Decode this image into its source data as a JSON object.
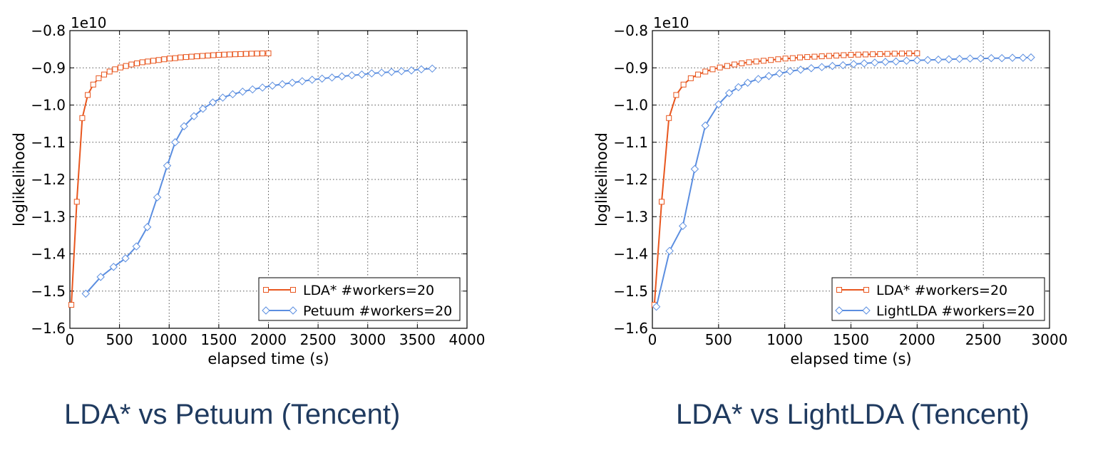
{
  "chart_data": [
    {
      "type": "line",
      "title": "",
      "xlabel": "elapsed time (s)",
      "ylabel": "loglikelihood",
      "y_multiplier": "1e10",
      "xlim": [
        0,
        4000
      ],
      "ylim": [
        -1.6,
        -0.8
      ],
      "xticks": [
        0,
        500,
        1000,
        1500,
        2000,
        2500,
        3000,
        3500,
        4000
      ],
      "xtick_labels": [
        "0",
        "500",
        "1000",
        "1500",
        "2000",
        "2500",
        "3000",
        "3500",
        "4000"
      ],
      "yticks": [
        -1.6,
        -1.5,
        -1.4,
        -1.3,
        -1.2,
        -1.1,
        -1.0,
        -0.9,
        -0.8
      ],
      "ytick_labels": [
        "−1.6",
        "−1.5",
        "−1.4",
        "−1.3",
        "−1.2",
        "−1.1",
        "−1.0",
        "−0.9",
        "−0.8"
      ],
      "grid": true,
      "legend_position": "lower-right",
      "series": [
        {
          "name": "LDA* #workers=20",
          "color": "#e8561e",
          "marker": "square",
          "x": [
            15,
            70,
            125,
            180,
            235,
            290,
            345,
            400,
            455,
            510,
            565,
            620,
            675,
            730,
            785,
            840,
            895,
            950,
            1005,
            1060,
            1115,
            1170,
            1225,
            1280,
            1335,
            1390,
            1445,
            1500,
            1555,
            1610,
            1665,
            1720,
            1775,
            1830,
            1885,
            1940,
            2000
          ],
          "y": [
            -1.537,
            -1.26,
            -1.035,
            -0.973,
            -0.945,
            -0.928,
            -0.918,
            -0.91,
            -0.904,
            -0.899,
            -0.895,
            -0.891,
            -0.888,
            -0.885,
            -0.883,
            -0.881,
            -0.879,
            -0.877,
            -0.875,
            -0.874,
            -0.872,
            -0.871,
            -0.87,
            -0.869,
            -0.868,
            -0.867,
            -0.866,
            -0.865,
            -0.8645,
            -0.864,
            -0.8635,
            -0.863,
            -0.8625,
            -0.862,
            -0.8617,
            -0.8613,
            -0.861
          ]
        },
        {
          "name": "Petuum #workers=20",
          "color": "#5b8ee0",
          "marker": "diamond",
          "x": [
            160,
            310,
            440,
            560,
            670,
            780,
            880,
            980,
            1060,
            1150,
            1250,
            1340,
            1440,
            1540,
            1640,
            1740,
            1840,
            1940,
            2040,
            2140,
            2240,
            2340,
            2440,
            2540,
            2640,
            2740,
            2840,
            2940,
            3040,
            3140,
            3240,
            3340,
            3440,
            3540,
            3650
          ],
          "y": [
            -1.507,
            -1.462,
            -1.435,
            -1.412,
            -1.38,
            -1.328,
            -1.248,
            -1.163,
            -1.1,
            -1.057,
            -1.03,
            -1.01,
            -0.993,
            -0.98,
            -0.971,
            -0.964,
            -0.958,
            -0.953,
            -0.948,
            -0.944,
            -0.94,
            -0.936,
            -0.932,
            -0.929,
            -0.926,
            -0.923,
            -0.92,
            -0.918,
            -0.915,
            -0.913,
            -0.911,
            -0.909,
            -0.907,
            -0.904,
            -0.902
          ]
        }
      ]
    },
    {
      "type": "line",
      "title": "",
      "xlabel": "elapsed time (s)",
      "ylabel": "loglikelihood",
      "y_multiplier": "1e10",
      "xlim": [
        0,
        3000
      ],
      "ylim": [
        -1.6,
        -0.8
      ],
      "xticks": [
        0,
        500,
        1000,
        1500,
        2000,
        2500,
        3000
      ],
      "xtick_labels": [
        "0",
        "500",
        "1000",
        "1500",
        "2000",
        "2500",
        "3000"
      ],
      "yticks": [
        -1.6,
        -1.5,
        -1.4,
        -1.3,
        -1.2,
        -1.1,
        -1.0,
        -0.9,
        -0.8
      ],
      "ytick_labels": [
        "−1.6",
        "−1.5",
        "−1.4",
        "−1.3",
        "−1.2",
        "−1.1",
        "−1.0",
        "−0.9",
        "−0.8"
      ],
      "grid": true,
      "legend_position": "lower-right",
      "series": [
        {
          "name": "LDA* #workers=20",
          "color": "#e8561e",
          "marker": "square",
          "x": [
            15,
            70,
            125,
            180,
            235,
            290,
            345,
            400,
            455,
            510,
            565,
            620,
            675,
            730,
            785,
            840,
            895,
            950,
            1005,
            1060,
            1115,
            1170,
            1225,
            1280,
            1335,
            1390,
            1445,
            1500,
            1555,
            1610,
            1665,
            1720,
            1775,
            1830,
            1885,
            1940,
            2000
          ],
          "y": [
            -1.537,
            -1.26,
            -1.035,
            -0.973,
            -0.945,
            -0.928,
            -0.918,
            -0.91,
            -0.904,
            -0.899,
            -0.895,
            -0.891,
            -0.888,
            -0.885,
            -0.883,
            -0.881,
            -0.879,
            -0.877,
            -0.875,
            -0.874,
            -0.872,
            -0.871,
            -0.87,
            -0.869,
            -0.868,
            -0.867,
            -0.866,
            -0.865,
            -0.8645,
            -0.864,
            -0.8635,
            -0.863,
            -0.8625,
            -0.862,
            -0.8617,
            -0.8613,
            -0.861
          ]
        },
        {
          "name": "LightLDA #workers=20",
          "color": "#5b8ee0",
          "marker": "diamond",
          "x": [
            30,
            130,
            230,
            320,
            400,
            500,
            580,
            650,
            720,
            800,
            880,
            960,
            1040,
            1120,
            1200,
            1280,
            1360,
            1440,
            1520,
            1600,
            1680,
            1760,
            1840,
            1920,
            2000,
            2080,
            2160,
            2240,
            2320,
            2400,
            2480,
            2560,
            2640,
            2720,
            2800,
            2860
          ],
          "y": [
            -1.542,
            -1.392,
            -1.325,
            -1.172,
            -1.055,
            -0.998,
            -0.968,
            -0.952,
            -0.94,
            -0.93,
            -0.922,
            -0.915,
            -0.909,
            -0.905,
            -0.901,
            -0.898,
            -0.895,
            -0.893,
            -0.89,
            -0.888,
            -0.886,
            -0.884,
            -0.883,
            -0.881,
            -0.88,
            -0.879,
            -0.878,
            -0.877,
            -0.876,
            -0.875,
            -0.875,
            -0.874,
            -0.874,
            -0.873,
            -0.873,
            -0.872
          ]
        }
      ]
    }
  ],
  "captions": {
    "left": "LDA* vs Petuum (Tencent)",
    "right": "LDA* vs LightLDA (Tencent)"
  }
}
